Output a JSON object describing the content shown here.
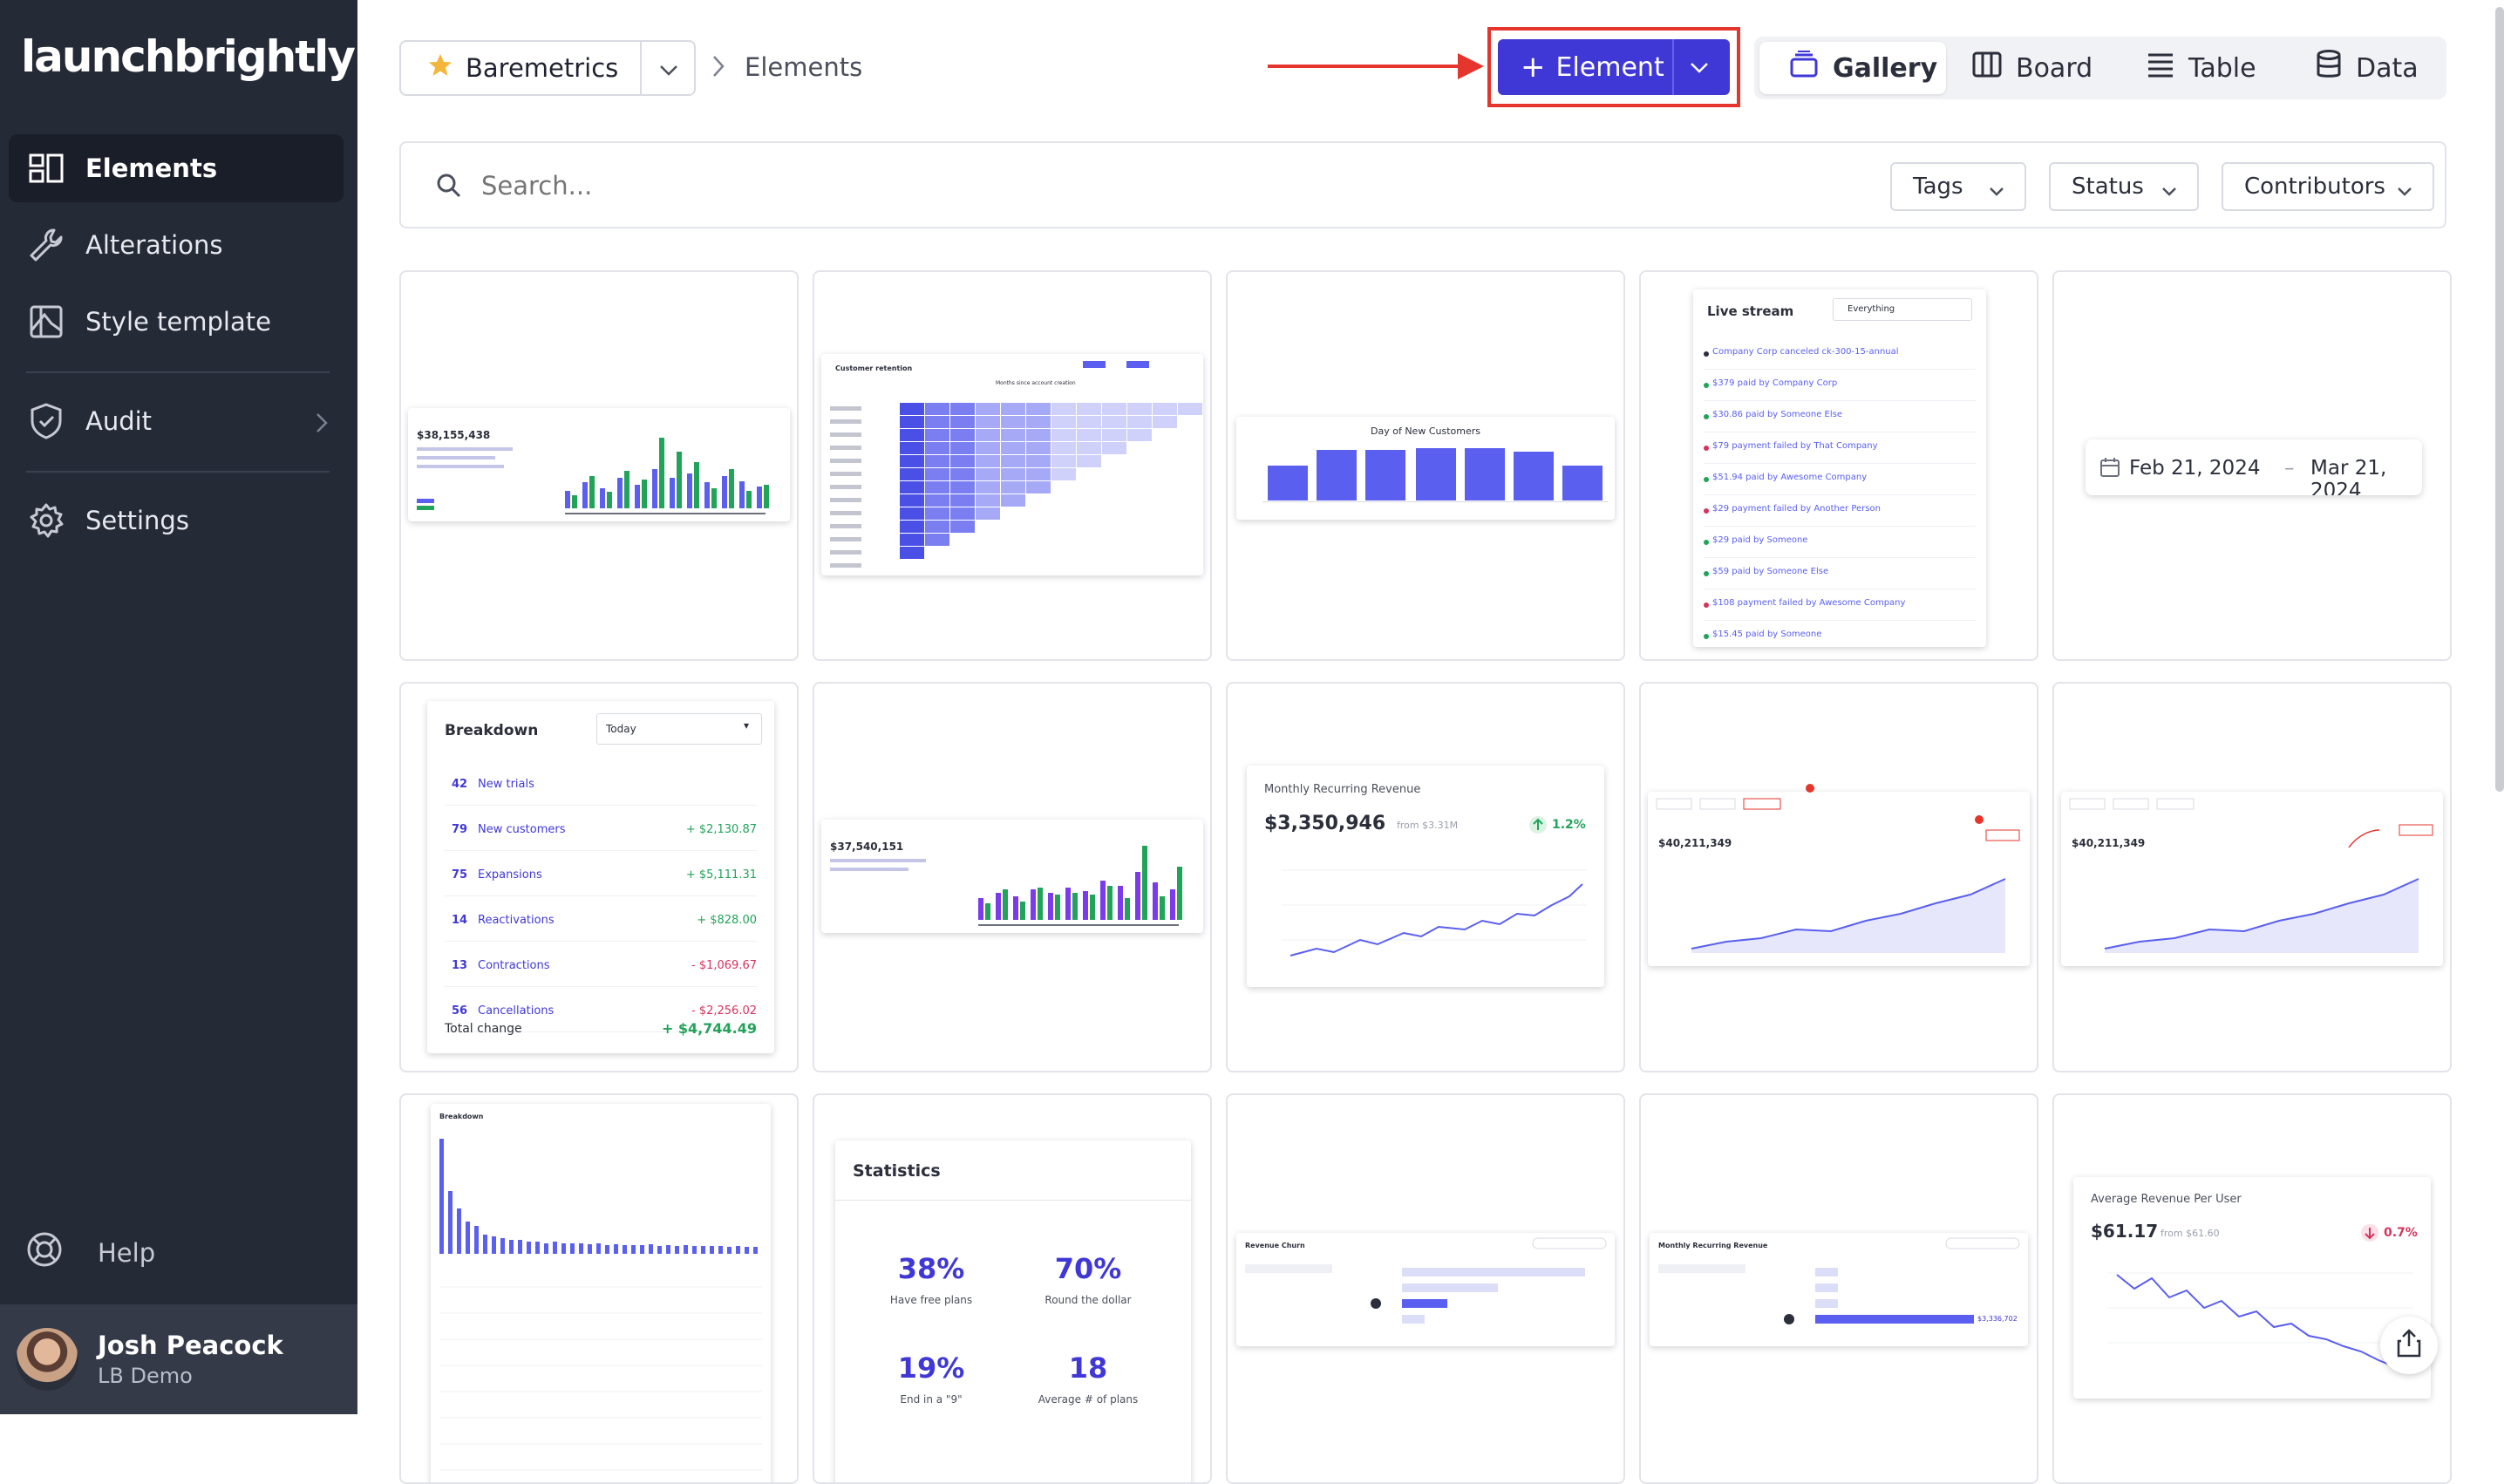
{
  "app": {
    "logo": "launchbrightly"
  },
  "sidebar": {
    "items": [
      {
        "label": "Elements",
        "icon": "elements-icon"
      },
      {
        "label": "Alterations",
        "icon": "wrench-icon"
      },
      {
        "label": "Style template",
        "icon": "style-template-icon"
      },
      {
        "label": "Audit",
        "icon": "shield-check-icon"
      },
      {
        "label": "Settings",
        "icon": "gear-icon"
      }
    ],
    "help": "Help",
    "user": {
      "name": "Josh Peacock",
      "org": "LB Demo"
    }
  },
  "header": {
    "project": "Baremetrics",
    "breadcrumb": "Elements",
    "add_button": "+ Element",
    "add_label": "Element",
    "views": [
      "Gallery",
      "Board",
      "Table",
      "Data"
    ]
  },
  "search": {
    "placeholder": "Search..."
  },
  "filters": [
    "Tags",
    "Status",
    "Contributors"
  ],
  "cards": {
    "c1": {
      "amount": "$38,155,438"
    },
    "c2": {
      "title": "Customer retention",
      "subtitle": "Months since account creation"
    },
    "c3": {
      "title": "Day of New Customers"
    },
    "c4": {
      "title": "Live stream",
      "filter": "Everything",
      "events": [
        "Company Corp canceled ck-300-15-annual",
        "$379 paid by Company Corp",
        "$30.86 paid by Someone Else",
        "$79 payment failed by That Company",
        "$51.94 paid by Awesome Company",
        "$29 payment failed by Another Person",
        "$29 paid by Someone",
        "$59 paid by Someone Else",
        "$108 payment failed by Awesome Company",
        "$15.45 paid by Someone"
      ]
    },
    "c5": {
      "start": "Feb 21, 2024",
      "sep": "–",
      "end": "Mar 21, 2024"
    },
    "c6": {
      "title": "Breakdown",
      "select": "Today",
      "rows": [
        {
          "n": "42",
          "label": "New trials",
          "value": ""
        },
        {
          "n": "79",
          "label": "New customers",
          "value": "+ $2,130.87"
        },
        {
          "n": "75",
          "label": "Expansions",
          "value": "+ $5,111.31"
        },
        {
          "n": "14",
          "label": "Reactivations",
          "value": "+ $828.00"
        },
        {
          "n": "13",
          "label": "Contractions",
          "value": "- $1,069.67"
        },
        {
          "n": "56",
          "label": "Cancellations",
          "value": "- $2,256.02"
        }
      ],
      "total_label": "Total change",
      "total_value": "+ $4,744.49"
    },
    "c7": {
      "amount": "$37,540,151"
    },
    "c8": {
      "title": "Monthly Recurring Revenue",
      "amount": "$3,350,946",
      "from": "from $3.31M",
      "change": "1.2%"
    },
    "c9": {
      "amount": "$40,211,349"
    },
    "c10": {
      "amount": "$40,211,349"
    },
    "c11": {
      "title": "Breakdown"
    },
    "c12": {
      "title": "Statistics",
      "stats": [
        {
          "value": "38%",
          "label": "Have free plans"
        },
        {
          "value": "70%",
          "label": "Round the dollar"
        },
        {
          "value": "19%",
          "label": "End in a \"9\""
        },
        {
          "value": "18",
          "label": "Average # of plans"
        }
      ]
    },
    "c13": {
      "title": "Revenue Churn"
    },
    "c14": {
      "title": "Monthly Recurring Revenue",
      "amount": "$3,336,702"
    },
    "c15": {
      "title": "Average Revenue Per User",
      "amount": "$61.17",
      "from": "from $61.60",
      "change": "0.7%"
    }
  },
  "colors": {
    "accent": "#4038d6",
    "highlight": "#e5352c",
    "green": "#22a35a",
    "red": "#d6335c",
    "bar": "#5a5ff0"
  }
}
